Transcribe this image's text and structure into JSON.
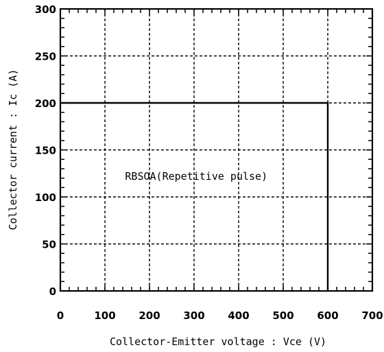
{
  "chart_data": {
    "type": "line",
    "x_ticks": [
      "0",
      "100",
      "200",
      "300",
      "400",
      "500",
      "600",
      "700"
    ],
    "y_ticks": [
      "0",
      "50",
      "100",
      "150",
      "200",
      "250",
      "300"
    ],
    "xlabel": "Collector-Emitter voltage : Vce (V)",
    "ylabel": "Collector current : Ic (A)",
    "xlim": [
      0,
      700
    ],
    "ylim": [
      0,
      300
    ],
    "grid": true,
    "series": [
      {
        "name": "RBSOA(Repetitive pulse)",
        "x": [
          0,
          600,
          600
        ],
        "y": [
          200,
          200,
          0
        ]
      }
    ],
    "annotations": [
      {
        "text": "RBSOA(Repetitive pulse)",
        "x": 305,
        "y": 122
      }
    ]
  }
}
